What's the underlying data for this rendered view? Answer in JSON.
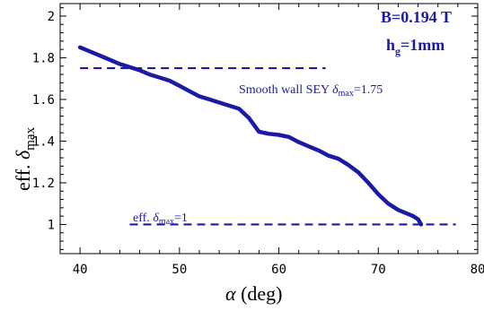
{
  "chart_data": {
    "type": "line",
    "xlabel_symbol": "α",
    "xlabel_unit": "(deg)",
    "ylabel_prefix": "eff.",
    "ylabel_symbol": "δ",
    "ylabel_sub": "max",
    "xlim": [
      38,
      80
    ],
    "ylim": [
      0.86,
      2.06
    ],
    "xticks": [
      40,
      50,
      60,
      70,
      80
    ],
    "yticks": [
      1,
      1.2,
      1.4,
      1.6,
      1.8,
      2
    ],
    "ytick_labels": [
      "1",
      "1.2",
      "1.4",
      "1.6",
      "1.8",
      "2"
    ],
    "grid": false,
    "line_color": "#1a1aa6",
    "series": [
      {
        "x": [
          40,
          42,
          44,
          46,
          47,
          48,
          49,
          50,
          51,
          52,
          53,
          54,
          55,
          56,
          57,
          58,
          59,
          60,
          61,
          62,
          63,
          64,
          65,
          66,
          67,
          68,
          69,
          70,
          71,
          72,
          73,
          73.5,
          74,
          74.3
        ],
        "y": [
          1.85,
          1.81,
          1.77,
          1.74,
          1.72,
          1.705,
          1.69,
          1.665,
          1.64,
          1.615,
          1.6,
          1.585,
          1.57,
          1.555,
          1.51,
          1.445,
          1.435,
          1.43,
          1.42,
          1.395,
          1.375,
          1.355,
          1.33,
          1.315,
          1.285,
          1.25,
          1.2,
          1.145,
          1.1,
          1.07,
          1.05,
          1.04,
          1.025,
          1.0
        ],
        "style": "solid-thick"
      }
    ],
    "reference_lines": [
      {
        "y": 1.75,
        "x_range": [
          40,
          64.7
        ],
        "style": "dashed",
        "label_text": "Smooth wall SEY ",
        "label_symbol": "δ",
        "label_sub": "max",
        "label_value": "=1.75"
      },
      {
        "y": 1.0,
        "x_range": [
          45,
          77.8
        ],
        "style": "dashed",
        "label_text": "eff. ",
        "label_symbol": "δ",
        "label_sub": "max",
        "label_value": "=1"
      }
    ],
    "annotations": [
      {
        "text": "B=0.194 T"
      },
      {
        "text_main": "h",
        "text_sub": "g",
        "text_tail": "=1mm"
      }
    ]
  }
}
